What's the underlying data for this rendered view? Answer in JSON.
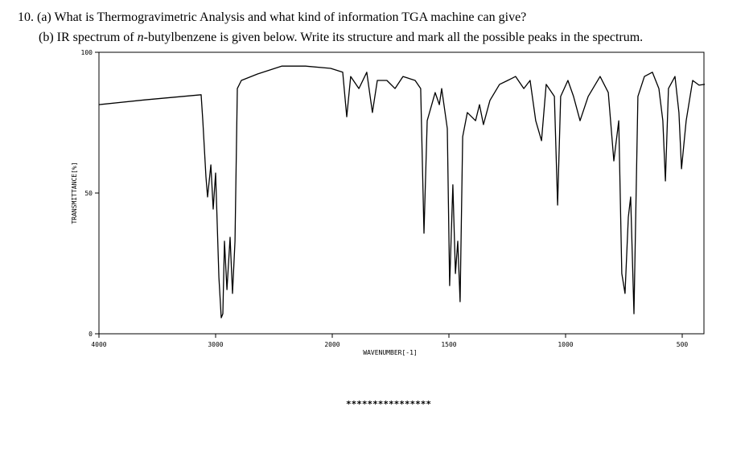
{
  "question": {
    "part_a": "10. (a) What is Thermogravimetric Analysis and what kind of information TGA machine can give?",
    "part_b_start": "(b) IR spectrum of ",
    "part_b_italic": "n",
    "part_b_end": "-butylbenzene is given below. Write its structure and mark all the possible peaks in the spectrum."
  },
  "chart_data": {
    "type": "line",
    "x_label": "WAVENUMBER[-1]",
    "y_label": "TRANSMITTANCE[%]",
    "xlim": [
      4000,
      403
    ],
    "ylim": [
      0,
      100
    ],
    "xticks": [
      4000,
      3000,
      2000,
      1500,
      1000,
      500
    ],
    "yticks": [
      0,
      50,
      100
    ],
    "color": "#000000",
    "x": [
      4000,
      3607,
      3124,
      3110,
      3083,
      3069,
      3041,
      3021,
      3000,
      2972,
      2952,
      2938,
      2924,
      2903,
      2876,
      2855,
      2834,
      2814,
      2779,
      2641,
      2434,
      2228,
      2014,
      1955,
      1938,
      1921,
      1886,
      1852,
      1828,
      1807,
      1766,
      1731,
      1697,
      1645,
      1621,
      1607,
      1593,
      1559,
      1541,
      1531,
      1507,
      1497,
      1483,
      1472,
      1462,
      1452,
      1441,
      1421,
      1386,
      1369,
      1352,
      1324,
      1283,
      1248,
      1214,
      1179,
      1152,
      1128,
      1103,
      1083,
      1048,
      1034,
      1021,
      990,
      966,
      938,
      903,
      852,
      817,
      793,
      772,
      759,
      745,
      731,
      721,
      707,
      690,
      662,
      628,
      600,
      583,
      572,
      559,
      531,
      514,
      503,
      483,
      455,
      428,
      403
    ],
    "values": [
      81.4,
      83.1,
      84.9,
      75.7,
      55.7,
      48.6,
      60,
      44.3,
      57.1,
      20,
      5.7,
      7.1,
      32.9,
      15.7,
      34.3,
      14.3,
      32.9,
      87.1,
      90,
      92.3,
      95.1,
      95.1,
      94.3,
      92.9,
      77.1,
      91.4,
      87.1,
      92.9,
      78.6,
      90,
      90,
      87.1,
      91.4,
      90,
      87.1,
      35.7,
      75.7,
      85.7,
      81.4,
      87.1,
      72.9,
      17.1,
      52.9,
      21.4,
      32.9,
      11.4,
      70,
      78.6,
      75.7,
      81.4,
      74.3,
      82.9,
      88.6,
      90,
      91.4,
      87.1,
      90,
      75.7,
      68.6,
      88.6,
      84.3,
      45.7,
      84.3,
      90,
      84.3,
      75.7,
      84.3,
      91.4,
      85.7,
      61.4,
      75.7,
      21.4,
      14.3,
      41.4,
      48.6,
      7.1,
      84.3,
      91.4,
      92.9,
      87.1,
      75.7,
      54.3,
      87.1,
      91.4,
      78.6,
      58.6,
      75.7,
      90,
      88.3,
      88.6
    ]
  },
  "footer": "****************"
}
